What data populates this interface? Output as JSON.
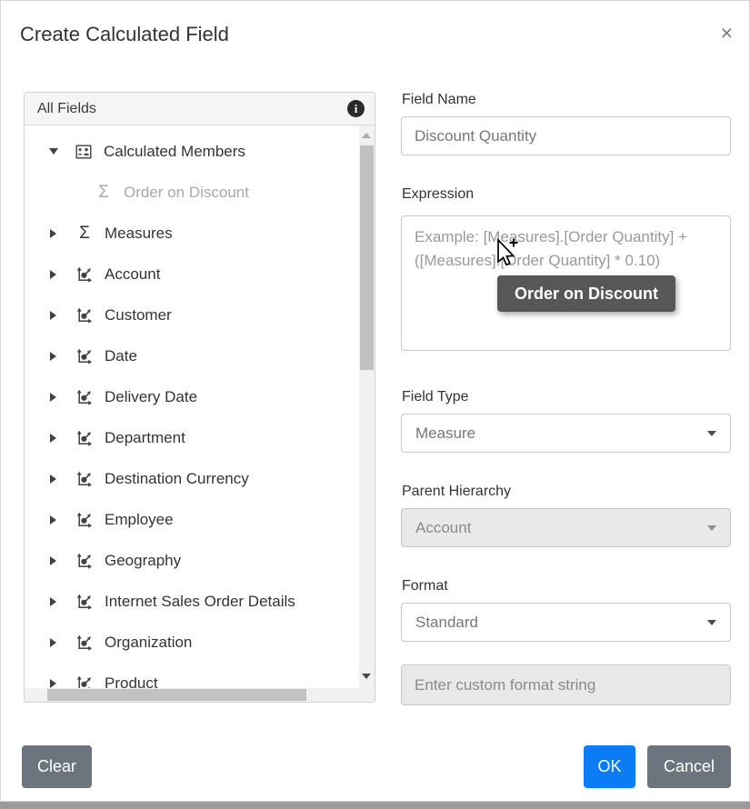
{
  "dialog": {
    "title": "Create Calculated Field"
  },
  "icons": {
    "close": "×",
    "info": "i",
    "sigma": "Σ"
  },
  "field_list": {
    "header": "All Fields",
    "items": [
      {
        "label": "Calculated Members",
        "icon": "calculated-members",
        "state": "expanded",
        "level": 0,
        "muted": false
      },
      {
        "label": "Order on Discount",
        "icon": "sigma",
        "state": "leaf",
        "level": 1,
        "muted": true
      },
      {
        "label": "Measures",
        "icon": "sigma",
        "state": "collapsed",
        "level": 0,
        "muted": false
      },
      {
        "label": "Account",
        "icon": "hierarchy",
        "state": "collapsed",
        "level": 0,
        "muted": false
      },
      {
        "label": "Customer",
        "icon": "hierarchy",
        "state": "collapsed",
        "level": 0,
        "muted": false
      },
      {
        "label": "Date",
        "icon": "hierarchy",
        "state": "collapsed",
        "level": 0,
        "muted": false
      },
      {
        "label": "Delivery Date",
        "icon": "hierarchy",
        "state": "collapsed",
        "level": 0,
        "muted": false
      },
      {
        "label": "Department",
        "icon": "hierarchy",
        "state": "collapsed",
        "level": 0,
        "muted": false
      },
      {
        "label": "Destination Currency",
        "icon": "hierarchy",
        "state": "collapsed",
        "level": 0,
        "muted": false
      },
      {
        "label": "Employee",
        "icon": "hierarchy",
        "state": "collapsed",
        "level": 0,
        "muted": false
      },
      {
        "label": "Geography",
        "icon": "hierarchy",
        "state": "collapsed",
        "level": 0,
        "muted": false
      },
      {
        "label": "Internet Sales Order Details",
        "icon": "hierarchy",
        "state": "collapsed",
        "level": 0,
        "muted": false
      },
      {
        "label": "Organization",
        "icon": "hierarchy",
        "state": "collapsed",
        "level": 0,
        "muted": false
      },
      {
        "label": "Product",
        "icon": "hierarchy",
        "state": "collapsed",
        "level": 0,
        "muted": false
      }
    ]
  },
  "form": {
    "field_name": {
      "label": "Field Name",
      "value": "Discount Quantity"
    },
    "expression": {
      "label": "Expression",
      "placeholder": "Example: [Measures].[Order Quantity] + ([Measures].[Order Quantity] * 0.10)"
    },
    "drag_tooltip": "Order on Discount",
    "field_type": {
      "label": "Field Type",
      "value": "Measure"
    },
    "parent_hierarchy": {
      "label": "Parent Hierarchy",
      "value": "Account",
      "disabled": true
    },
    "format": {
      "label": "Format",
      "value": "Standard"
    },
    "custom_format": {
      "placeholder": "Enter custom format string",
      "disabled": true
    }
  },
  "footer": {
    "clear": "Clear",
    "ok": "OK",
    "cancel": "Cancel"
  },
  "colors": {
    "primary": "#0b7cf5",
    "secondary": "#6c757d",
    "tooltip_bg": "#575757",
    "panel_header_bg": "#f5f5f5",
    "disabled_bg": "#e9e9e9"
  }
}
